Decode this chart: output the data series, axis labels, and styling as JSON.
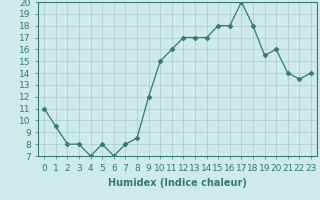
{
  "x": [
    0,
    1,
    2,
    3,
    4,
    5,
    6,
    7,
    8,
    9,
    10,
    11,
    12,
    13,
    14,
    15,
    16,
    17,
    18,
    19,
    20,
    21,
    22,
    23
  ],
  "y": [
    11,
    9.5,
    8,
    8,
    7,
    8,
    7,
    8,
    8.5,
    12,
    15,
    16,
    17,
    17,
    17,
    18,
    18,
    20,
    18,
    15.5,
    16,
    14,
    13.5,
    14
  ],
  "line_color": "#2e7d6e",
  "marker": "D",
  "marker_size": 2.5,
  "bg_color": "#ceeaea",
  "grid_color": "#aacccc",
  "xlabel": "Humidex (Indice chaleur)",
  "ylim": [
    7,
    20
  ],
  "xlim": [
    -0.5,
    23.5
  ],
  "yticks": [
    7,
    8,
    9,
    10,
    11,
    12,
    13,
    14,
    15,
    16,
    17,
    18,
    19,
    20
  ],
  "xticks": [
    0,
    1,
    2,
    3,
    4,
    5,
    6,
    7,
    8,
    9,
    10,
    11,
    12,
    13,
    14,
    15,
    16,
    17,
    18,
    19,
    20,
    21,
    22,
    23
  ],
  "xtick_labels": [
    "0",
    "1",
    "2",
    "3",
    "4",
    "5",
    "6",
    "7",
    "8",
    "9",
    "10",
    "11",
    "12",
    "13",
    "14",
    "15",
    "16",
    "17",
    "18",
    "19",
    "20",
    "21",
    "22",
    "23"
  ],
  "xlabel_fontsize": 7,
  "tick_fontsize": 6.5
}
